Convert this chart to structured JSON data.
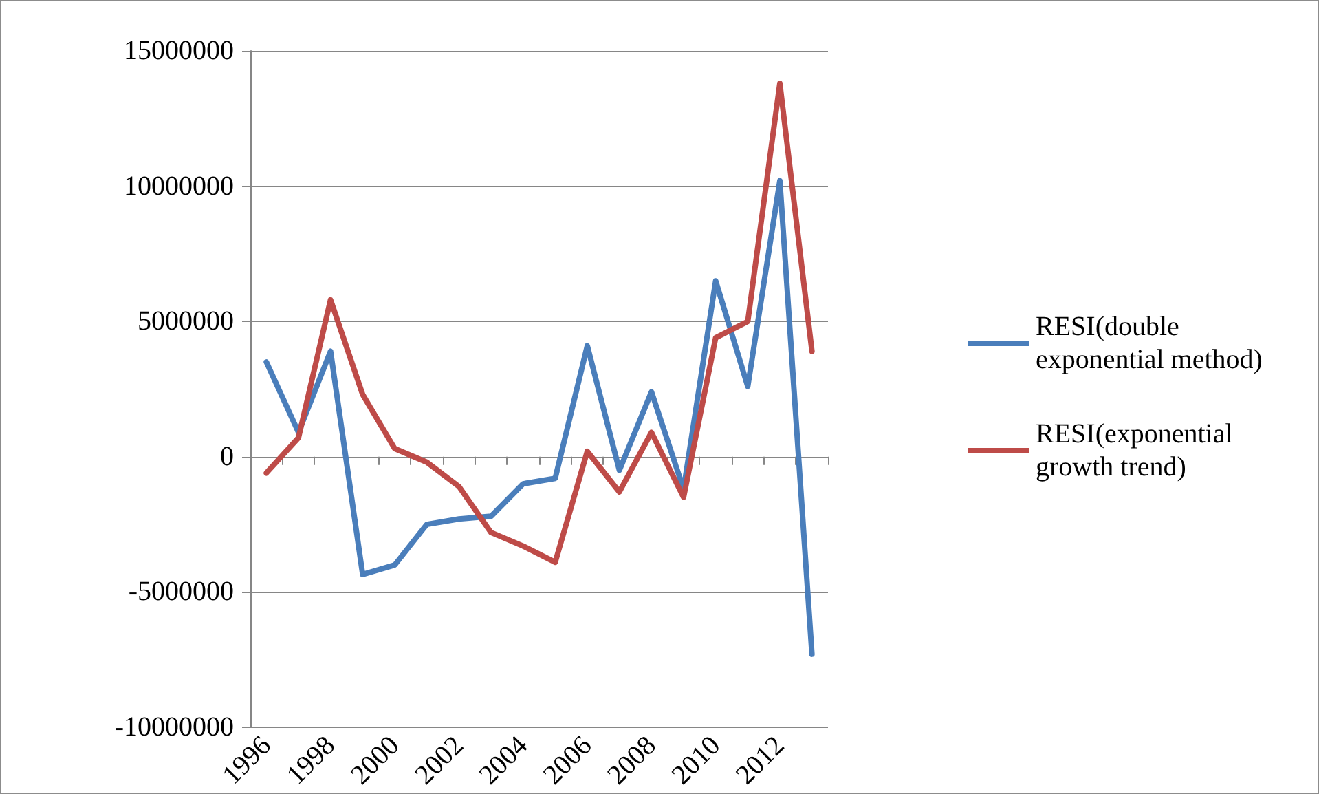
{
  "chart_data": {
    "type": "line",
    "categories": [
      "1996",
      null,
      "1998",
      null,
      "2000",
      null,
      "2002",
      null,
      "2004",
      null,
      "2006",
      null,
      "2008",
      null,
      "2010",
      null,
      "2012",
      null
    ],
    "series": [
      {
        "name": "RESI(double exponential method)",
        "color": "#4a7ebb",
        "values": [
          3500000.0,
          900000.0,
          3900000.0,
          -4350000.0,
          -4000000.0,
          -2500000.0,
          -2300000.0,
          -2200000.0,
          -1000000.0,
          -800000.0,
          4100000.0,
          -500000.0,
          2400000.0,
          -1200000.0,
          6500000.0,
          2600000.0,
          10200000.0,
          -7300000.0
        ]
      },
      {
        "name": "RESI(exponential growth trend)",
        "color": "#be4b48",
        "values": [
          -600000.0,
          700000.0,
          5800000.0,
          2300000.0,
          300000.0,
          -200000.0,
          -1100000.0,
          -2800000.0,
          -3300000.0,
          -3900000.0,
          200000.0,
          -1300000.0,
          900000.0,
          -1500000.0,
          4400000.0,
          5000000.0,
          13800000.0,
          3900000.0
        ]
      }
    ],
    "ylim": [
      -10000000,
      15000000
    ],
    "yticks": [
      -10000000,
      -5000000,
      0,
      5000000,
      10000000,
      15000000
    ],
    "grid": "y",
    "legend": "right",
    "marker": "none",
    "line_style": "solid"
  }
}
